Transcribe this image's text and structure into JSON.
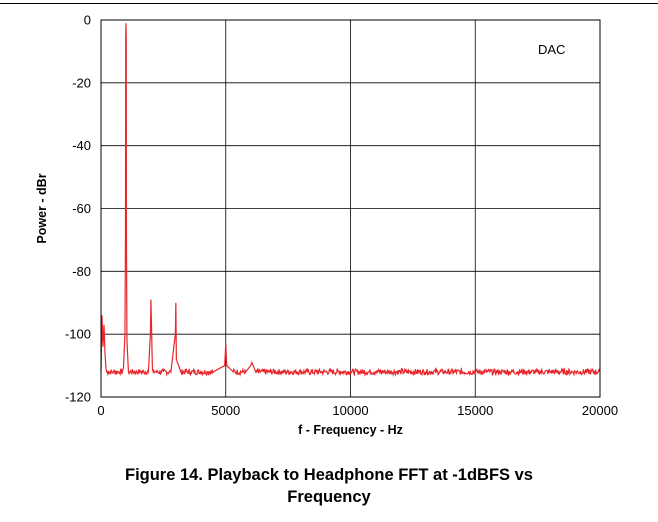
{
  "figure": {
    "caption_line1": "Figure 14. Playback to Headphone FFT at -1dBFS vs",
    "caption_line2": "Frequency"
  },
  "chart_data": {
    "type": "line",
    "title": "",
    "xlabel": "f - Frequency - Hz",
    "ylabel": "Power - dBr",
    "xlim": [
      0,
      20000
    ],
    "ylim": [
      -120,
      0
    ],
    "xticks": [
      0,
      5000,
      10000,
      15000,
      20000
    ],
    "yticks": [
      0,
      -20,
      -40,
      -60,
      -80,
      -100,
      -120
    ],
    "grid": true,
    "annotation": "DAC",
    "series_color": "#e8262b",
    "series": [
      {
        "noise_floor_db": -112,
        "x": [
          0,
          40,
          80,
          120,
          160,
          200,
          300,
          500,
          700,
          900,
          960,
          980,
          990,
          1000,
          1010,
          1020,
          1040,
          1100,
          1300,
          1600,
          1900,
          1980,
          2000,
          2020,
          2060,
          2200,
          2500,
          2800,
          2980,
          3000,
          3020,
          3200,
          3600,
          4000,
          4500,
          4960,
          5000,
          5040,
          5300,
          5800,
          6000,
          6050,
          6200,
          7000,
          8000,
          9000,
          10000,
          11000,
          12000,
          13000,
          14000,
          15000,
          16000,
          17000,
          18000,
          19000,
          20000
        ],
        "y": [
          -112,
          -94,
          -104,
          -97,
          -106,
          -111,
          -112,
          -112,
          -112,
          -111,
          -100,
          -70,
          -5,
          -1,
          -5,
          -70,
          -102,
          -112,
          -112,
          -112,
          -112,
          -100,
          -89,
          -96,
          -111,
          -112,
          -112,
          -112,
          -100,
          -90,
          -108,
          -112,
          -112,
          -112,
          -112,
          -110,
          -103,
          -110,
          -112,
          -112,
          -110,
          -109,
          -112,
          -112,
          -112,
          -112,
          -112,
          -112,
          -112,
          -112,
          -112,
          -112,
          -112,
          -112,
          -112,
          -112,
          -112
        ]
      }
    ]
  }
}
